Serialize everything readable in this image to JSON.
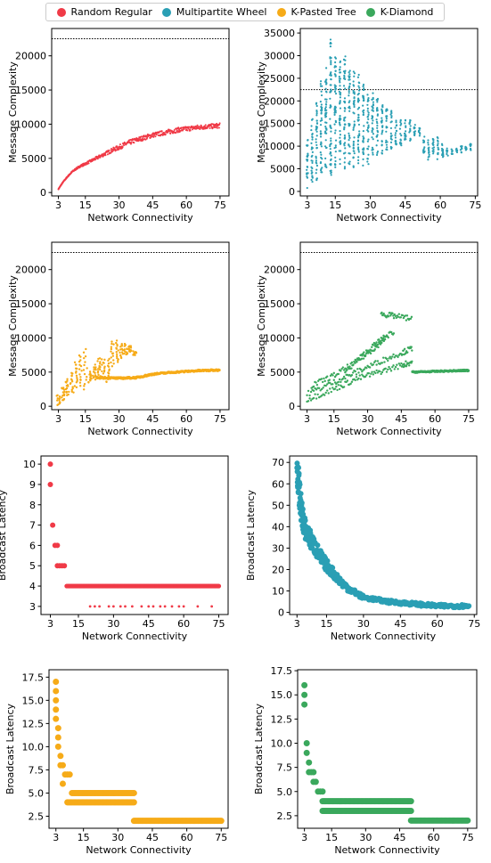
{
  "colors": {
    "random_regular": "#f03a47",
    "multipartite_wheel": "#2a9fb4",
    "k_pasted_tree": "#f6ab18",
    "k_diamond": "#3aa85c"
  },
  "legend": {
    "items": [
      {
        "label": "Random Regular",
        "color": "#f03a47"
      },
      {
        "label": "Multipartite Wheel",
        "color": "#2a9fb4"
      },
      {
        "label": "K-Pasted Tree",
        "color": "#f6ab18"
      },
      {
        "label": "K-Diamond",
        "color": "#3aa85c"
      }
    ],
    "placement": "top-center"
  },
  "chart_data": [
    {
      "type": "scatter",
      "series_name": "Random Regular",
      "color": "#f03a47",
      "xlabel": "Network Connectivity",
      "ylabel": "Message Complexity",
      "xlim": [
        0,
        79
      ],
      "ylim": [
        -500,
        24000
      ],
      "xticks": [
        3,
        15,
        30,
        45,
        60,
        75
      ],
      "yticks": [
        0,
        5000,
        10000,
        15000,
        20000
      ],
      "reference_line": 22500,
      "grid": false,
      "points": [
        [
          3,
          500
        ],
        [
          5,
          1500
        ],
        [
          7,
          2300
        ],
        [
          9,
          3000
        ],
        [
          11,
          3500
        ],
        [
          13,
          3900
        ],
        [
          15,
          4200
        ],
        [
          18,
          4700
        ],
        [
          21,
          5200
        ],
        [
          24,
          5700
        ],
        [
          27,
          6200
        ],
        [
          30,
          6600
        ],
        [
          33,
          7100
        ],
        [
          36,
          7500
        ],
        [
          39,
          7800
        ],
        [
          42,
          8100
        ],
        [
          45,
          8400
        ],
        [
          48,
          8600
        ],
        [
          51,
          8800
        ],
        [
          54,
          9000
        ],
        [
          57,
          9200
        ],
        [
          60,
          9300
        ],
        [
          63,
          9450
        ],
        [
          66,
          9550
        ],
        [
          69,
          9650
        ],
        [
          72,
          9700
        ],
        [
          75,
          9800
        ]
      ],
      "spread": 700
    },
    {
      "type": "scatter",
      "series_name": "Multipartite Wheel",
      "color": "#2a9fb4",
      "xlabel": "Network Connectivity",
      "ylabel": "Message Complexity",
      "xlim": [
        0,
        76
      ],
      "ylim": [
        -1000,
        36000
      ],
      "xticks": [
        3,
        15,
        30,
        45,
        60,
        75
      ],
      "yticks": [
        0,
        5000,
        10000,
        15000,
        20000,
        25000,
        30000,
        35000
      ],
      "reference_line": 22500,
      "grid": false,
      "columns": [
        [
          3,
          500,
          12000
        ],
        [
          5,
          2000,
          16000
        ],
        [
          7,
          2500,
          20000
        ],
        [
          9,
          4000,
          25000
        ],
        [
          11,
          5000,
          28000
        ],
        [
          13,
          3000,
          34000
        ],
        [
          15,
          5000,
          30000
        ],
        [
          17,
          6000,
          29000
        ],
        [
          19,
          5000,
          30000
        ],
        [
          21,
          6000,
          27000
        ],
        [
          23,
          5000,
          27000
        ],
        [
          25,
          6000,
          26000
        ],
        [
          27,
          5000,
          24000
        ],
        [
          29,
          6000,
          22000
        ],
        [
          31,
          7000,
          22000
        ],
        [
          33,
          8000,
          21000
        ],
        [
          35,
          8000,
          20000
        ],
        [
          37,
          9000,
          19000
        ],
        [
          39,
          9000,
          18000
        ],
        [
          41,
          10000,
          17000
        ],
        [
          43,
          10000,
          16000
        ],
        [
          45,
          11000,
          16500
        ],
        [
          47,
          11000,
          16000
        ],
        [
          49,
          12000,
          15000
        ],
        [
          51,
          12000,
          14000
        ],
        [
          53,
          8000,
          12500
        ],
        [
          55,
          7000,
          12000
        ],
        [
          57,
          8000,
          12500
        ],
        [
          59,
          7000,
          12000
        ],
        [
          61,
          7000,
          11000
        ],
        [
          63,
          7500,
          9500
        ],
        [
          65,
          8000,
          9500
        ],
        [
          67,
          8000,
          9500
        ],
        [
          69,
          8500,
          10000
        ],
        [
          71,
          9000,
          10000
        ],
        [
          73,
          9000,
          10500
        ]
      ]
    },
    {
      "type": "scatter",
      "series_name": "K-Pasted Tree",
      "color": "#f6ab18",
      "xlabel": "Network Connectivity",
      "ylabel": "Message Complexity",
      "xlim": [
        0,
        79
      ],
      "ylim": [
        -500,
        24000
      ],
      "xticks": [
        3,
        15,
        30,
        45,
        60,
        75
      ],
      "yticks": [
        0,
        5000,
        10000,
        15000,
        20000
      ],
      "reference_line": 22500,
      "grid": false,
      "columns": [
        [
          3,
          200,
          1500
        ],
        [
          5,
          800,
          2800
        ],
        [
          7,
          1500,
          4000
        ],
        [
          9,
          2000,
          5000
        ],
        [
          11,
          2800,
          6500
        ],
        [
          13,
          3000,
          7500
        ],
        [
          15,
          2500,
          8300
        ],
        [
          17,
          3500,
          5000
        ],
        [
          19,
          4000,
          6000
        ],
        [
          21,
          4500,
          7000
        ],
        [
          23,
          4000,
          7000
        ],
        [
          25,
          3500,
          6800
        ],
        [
          27,
          6000,
          9500
        ],
        [
          29,
          6500,
          9500
        ],
        [
          31,
          7000,
          9200
        ],
        [
          33,
          7500,
          9000
        ],
        [
          35,
          8000,
          8800
        ],
        [
          37,
          7500,
          8000
        ]
      ],
      "curve": [
        [
          20,
          4200
        ],
        [
          30,
          4100
        ],
        [
          38,
          4200
        ],
        [
          45,
          4700
        ],
        [
          55,
          5000
        ],
        [
          65,
          5200
        ],
        [
          75,
          5300
        ]
      ]
    },
    {
      "type": "scatter",
      "series_name": "K-Diamond",
      "color": "#3aa85c",
      "xlabel": "Network Connectivity",
      "ylabel": "Message Complexity",
      "xlim": [
        0,
        79
      ],
      "ylim": [
        -500,
        24000
      ],
      "xticks": [
        3,
        15,
        30,
        45,
        60,
        75
      ],
      "yticks": [
        0,
        5000,
        10000,
        15000,
        20000
      ],
      "reference_line": 22500,
      "grid": false,
      "bands": [
        [
          [
            3,
            1000
          ],
          [
            15,
            2500
          ],
          [
            25,
            4000
          ],
          [
            35,
            5000
          ],
          [
            45,
            6000
          ],
          [
            50,
            6500
          ]
        ],
        [
          [
            3,
            1800
          ],
          [
            15,
            3500
          ],
          [
            25,
            5000
          ],
          [
            35,
            6500
          ],
          [
            45,
            7800
          ],
          [
            50,
            8500
          ]
        ],
        [
          [
            5,
            3000
          ],
          [
            15,
            4500
          ],
          [
            25,
            6500
          ],
          [
            33,
            8500
          ],
          [
            38,
            10000
          ]
        ],
        [
          [
            20,
            5000
          ],
          [
            28,
            7500
          ],
          [
            35,
            9500
          ],
          [
            42,
            11000
          ]
        ],
        [
          [
            36,
            13500
          ],
          [
            42,
            13200
          ],
          [
            50,
            12800
          ]
        ]
      ],
      "curve": [
        [
          50,
          5000
        ],
        [
          60,
          5100
        ],
        [
          70,
          5200
        ],
        [
          75,
          5250
        ]
      ]
    },
    {
      "type": "scatter",
      "series_name": "Random Regular",
      "color": "#f03a47",
      "xlabel": "Network Connectivity",
      "ylabel": "Broadcast Latency",
      "xlim": [
        -1,
        79
      ],
      "ylim": [
        2.6,
        10.4
      ],
      "xticks": [
        3,
        15,
        30,
        45,
        60,
        75
      ],
      "yticks": [
        3,
        4,
        5,
        6,
        7,
        8,
        9,
        10
      ],
      "grid": false,
      "points": [
        [
          3,
          10
        ],
        [
          3,
          9
        ],
        [
          4,
          7
        ],
        [
          5,
          6
        ],
        [
          6,
          6
        ],
        [
          6,
          5
        ],
        [
          7,
          5
        ],
        [
          8,
          5
        ],
        [
          9,
          5
        ]
      ],
      "band": [
        10,
        75,
        4
      ],
      "scatter3": [
        20,
        22,
        24,
        28,
        30,
        33,
        35,
        38,
        42,
        45,
        47,
        50,
        52,
        55,
        58,
        60,
        66,
        72
      ]
    },
    {
      "type": "scatter",
      "series_name": "Multipartite Wheel",
      "color": "#2a9fb4",
      "xlabel": "Network Connectivity",
      "ylabel": "Broadcast Latency",
      "xlim": [
        0,
        76
      ],
      "ylim": [
        -1,
        73
      ],
      "xticks": [
        3,
        15,
        30,
        45,
        60,
        75
      ],
      "yticks": [
        0,
        10,
        20,
        30,
        40,
        50,
        60,
        70
      ],
      "grid": false,
      "curve": [
        [
          3,
          70
        ],
        [
          4,
          55
        ],
        [
          5,
          46
        ],
        [
          6,
          40
        ],
        [
          7,
          37
        ],
        [
          9,
          33
        ],
        [
          11,
          29
        ],
        [
          13,
          25
        ],
        [
          15,
          22
        ],
        [
          18,
          18
        ],
        [
          21,
          14
        ],
        [
          24,
          11
        ],
        [
          27,
          9
        ],
        [
          30,
          7
        ],
        [
          35,
          6
        ],
        [
          40,
          5
        ],
        [
          45,
          4.5
        ],
        [
          50,
          4
        ],
        [
          55,
          3.5
        ],
        [
          60,
          3
        ],
        [
          65,
          3
        ],
        [
          70,
          3
        ],
        [
          73,
          3
        ]
      ]
    },
    {
      "type": "scatter",
      "series_name": "K-Pasted Tree",
      "color": "#f6ab18",
      "xlabel": "Network Connectivity",
      "ylabel": "Broadcast Latency",
      "xlim": [
        0,
        78
      ],
      "ylim": [
        1.2,
        18.3
      ],
      "xticks": [
        3,
        15,
        30,
        45,
        60,
        75
      ],
      "yticks": [
        2.5,
        5.0,
        7.5,
        10.0,
        12.5,
        15.0,
        17.5
      ],
      "grid": false,
      "points": [
        [
          3,
          17
        ],
        [
          3,
          16
        ],
        [
          3,
          15
        ],
        [
          3,
          14
        ],
        [
          3,
          13
        ],
        [
          4,
          12
        ],
        [
          4,
          11
        ],
        [
          4,
          10
        ],
        [
          5,
          9
        ],
        [
          5,
          8
        ],
        [
          6,
          8
        ],
        [
          7,
          7
        ],
        [
          8,
          7
        ],
        [
          9,
          7
        ],
        [
          6,
          6
        ]
      ],
      "bands": [
        [
          8,
          37,
          4
        ],
        [
          10,
          37,
          5
        ],
        [
          37,
          75,
          2
        ]
      ]
    },
    {
      "type": "scatter",
      "series_name": "K-Diamond",
      "color": "#3aa85c",
      "xlabel": "Network Connectivity",
      "ylabel": "Broadcast Latency",
      "xlim": [
        0,
        79
      ],
      "ylim": [
        1.2,
        17.6
      ],
      "xticks": [
        3,
        15,
        30,
        45,
        60,
        75
      ],
      "yticks": [
        2.5,
        5.0,
        7.5,
        10.0,
        12.5,
        15.0,
        17.5
      ],
      "grid": false,
      "points": [
        [
          3,
          16
        ],
        [
          3,
          15
        ],
        [
          3,
          14
        ],
        [
          4,
          10
        ],
        [
          4,
          9
        ],
        [
          5,
          8
        ],
        [
          5,
          7
        ],
        [
          6,
          7
        ],
        [
          7,
          7
        ],
        [
          7,
          6
        ],
        [
          8,
          6
        ],
        [
          9,
          5
        ],
        [
          10,
          5
        ],
        [
          11,
          5
        ]
      ],
      "bands": [
        [
          11,
          50,
          4
        ],
        [
          11,
          50,
          3
        ],
        [
          50,
          75,
          2
        ]
      ]
    }
  ]
}
